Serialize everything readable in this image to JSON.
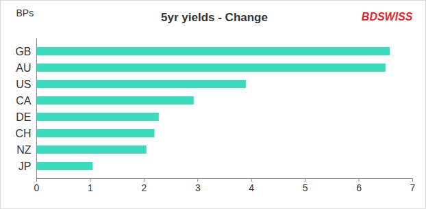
{
  "chart_data": {
    "type": "bar",
    "title": "5yr yields - Change",
    "ylabel": "BPs",
    "annotations": [
      "BDSWISS"
    ],
    "orientation": "horizontal",
    "categories": [
      "GB",
      "AU",
      "US",
      "CA",
      "DE",
      "CH",
      "NZ",
      "JP"
    ],
    "values": [
      6.58,
      6.5,
      3.9,
      2.93,
      2.28,
      2.2,
      2.05,
      1.05
    ],
    "color": "#3cdbbf",
    "xlim": [
      0,
      7
    ],
    "xticks": [
      0,
      1,
      2,
      3,
      4,
      5,
      6,
      7
    ],
    "grid": false
  }
}
